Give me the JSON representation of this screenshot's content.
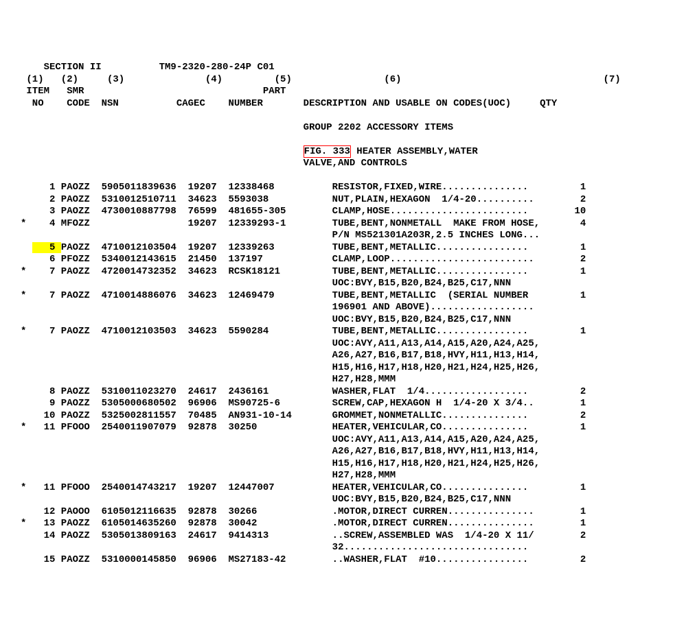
{
  "font_family": "Courier New",
  "font_size_pt": 14,
  "font_weight": "bold",
  "background_color": "#ffffff",
  "text_color": "#000000",
  "highlight_color": "#ffff00",
  "box_border_color": "#ff0000",
  "cols": {
    "star": 2,
    "item": 4,
    "smr": 6,
    "nsn": 14,
    "cagec": 6,
    "part": 15,
    "desc": 41,
    "qty": 3
  },
  "header": {
    "section": "SECTION II",
    "tm": "TM9-2320-280-24P C01",
    "col_nums": [
      "(1)",
      "(2)",
      "(3)",
      "(4)",
      "(5)",
      "(6)",
      "(7)"
    ],
    "h1": {
      "item": "ITEM",
      "smr": "SMR",
      "part": "PART"
    },
    "h2": {
      "no": "NO",
      "code": "CODE",
      "nsn": "NSN",
      "cagec": "CAGEC",
      "number": "NUMBER",
      "desc": "DESCRIPTION AND USABLE ON CODES(UOC)",
      "qty": "QTY"
    }
  },
  "group_line": "GROUP 2202 ACCESSORY ITEMS",
  "fig_box": "FIG. 333",
  "fig_rest": " HEATER ASSEMBLY,WATER",
  "fig_line2": "VALVE,AND CONTROLS",
  "rows": [
    {
      "star": "",
      "item": "1",
      "smr": "PAOZZ",
      "nsn": "5905011839636",
      "cagec": "19207",
      "part": "12338468",
      "desc": "RESISTOR,FIXED,WIRE...............",
      "qty": "1"
    },
    {
      "star": "",
      "item": "2",
      "smr": "PAOZZ",
      "nsn": "5310012510711",
      "cagec": "34623",
      "part": "5593038",
      "desc": "NUT,PLAIN,HEXAGON  1/4-20..........",
      "qty": "2"
    },
    {
      "star": "",
      "item": "3",
      "smr": "PAOZZ",
      "nsn": "4730010887798",
      "cagec": "76599",
      "part": "481655-305",
      "desc": "CLAMP,HOSE........................",
      "qty": "10"
    },
    {
      "star": "*",
      "item": "4",
      "smr": "MFOZZ",
      "nsn": "",
      "cagec": "19207",
      "part": "12339293-1",
      "desc": "TUBE,BENT,NONMETALL  MAKE FROM HOSE,",
      "qty": "4"
    },
    {
      "star": "",
      "item": "",
      "smr": "",
      "nsn": "",
      "cagec": "",
      "part": "",
      "desc": "P/N MS521301A203R,2.5 INCHES LONG...",
      "qty": ""
    },
    {
      "star": "",
      "item": "5",
      "smr": "PAOZZ",
      "nsn": "4710012103504",
      "cagec": "19207",
      "part": "12339263",
      "desc": "TUBE,BENT,METALLIC................",
      "qty": "1",
      "hl_item": true
    },
    {
      "star": "",
      "item": "6",
      "smr": "PFOZZ",
      "nsn": "5340012143615",
      "cagec": "21450",
      "part": "137197",
      "desc": "CLAMP,LOOP.........................",
      "qty": "2"
    },
    {
      "star": "*",
      "item": "7",
      "smr": "PAOZZ",
      "nsn": "4720014732352",
      "cagec": "34623",
      "part": "RCSK18121",
      "desc": "TUBE,BENT,METALLIC................",
      "qty": "1"
    },
    {
      "star": "",
      "item": "",
      "smr": "",
      "nsn": "",
      "cagec": "",
      "part": "",
      "desc": "UOC:BVY,B15,B20,B24,B25,C17,NNN",
      "qty": ""
    },
    {
      "star": "*",
      "item": "7",
      "smr": "PAOZZ",
      "nsn": "4710014886076",
      "cagec": "34623",
      "part": "12469479",
      "desc": "TUBE,BENT,METALLIC  (SERIAL NUMBER",
      "qty": "1"
    },
    {
      "star": "",
      "item": "",
      "smr": "",
      "nsn": "",
      "cagec": "",
      "part": "",
      "desc": "196901 AND ABOVE)..................",
      "qty": ""
    },
    {
      "star": "",
      "item": "",
      "smr": "",
      "nsn": "",
      "cagec": "",
      "part": "",
      "desc": "UOC:BVY,B15,B20,B24,B25,C17,NNN",
      "qty": ""
    },
    {
      "star": "*",
      "item": "7",
      "smr": "PAOZZ",
      "nsn": "4710012103503",
      "cagec": "34623",
      "part": "5590284",
      "desc": "TUBE,BENT,METALLIC................",
      "qty": "1"
    },
    {
      "star": "",
      "item": "",
      "smr": "",
      "nsn": "",
      "cagec": "",
      "part": "",
      "desc": "UOC:AVY,A11,A13,A14,A15,A20,A24,A25,",
      "qty": ""
    },
    {
      "star": "",
      "item": "",
      "smr": "",
      "nsn": "",
      "cagec": "",
      "part": "",
      "desc": "A26,A27,B16,B17,B18,HVY,H11,H13,H14,",
      "qty": ""
    },
    {
      "star": "",
      "item": "",
      "smr": "",
      "nsn": "",
      "cagec": "",
      "part": "",
      "desc": "H15,H16,H17,H18,H20,H21,H24,H25,H26,",
      "qty": ""
    },
    {
      "star": "",
      "item": "",
      "smr": "",
      "nsn": "",
      "cagec": "",
      "part": "",
      "desc": "H27,H28,MMM",
      "qty": ""
    },
    {
      "star": "",
      "item": "8",
      "smr": "PAOZZ",
      "nsn": "5310011023270",
      "cagec": "24617",
      "part": "2436161",
      "desc": "WASHER,FLAT  1/4..................",
      "qty": "2"
    },
    {
      "star": "",
      "item": "9",
      "smr": "PAOZZ",
      "nsn": "5305000680502",
      "cagec": "96906",
      "part": "MS90725-6",
      "desc": "SCREW,CAP,HEXAGON H  1/4-20 X 3/4..",
      "qty": "1"
    },
    {
      "star": "",
      "item": "10",
      "smr": "PAOZZ",
      "nsn": "5325002811557",
      "cagec": "70485",
      "part": "AN931-10-14",
      "desc": "GROMMET,NONMETALLIC...............",
      "qty": "2"
    },
    {
      "star": "*",
      "item": "11",
      "smr": "PFOOO",
      "nsn": "2540011907079",
      "cagec": "92878",
      "part": "30250",
      "desc": "HEATER,VEHICULAR,CO...............",
      "qty": "1"
    },
    {
      "star": "",
      "item": "",
      "smr": "",
      "nsn": "",
      "cagec": "",
      "part": "",
      "desc": "UOC:AVY,A11,A13,A14,A15,A20,A24,A25,",
      "qty": ""
    },
    {
      "star": "",
      "item": "",
      "smr": "",
      "nsn": "",
      "cagec": "",
      "part": "",
      "desc": "A26,A27,B16,B17,B18,HVY,H11,H13,H14,",
      "qty": ""
    },
    {
      "star": "",
      "item": "",
      "smr": "",
      "nsn": "",
      "cagec": "",
      "part": "",
      "desc": "H15,H16,H17,H18,H20,H21,H24,H25,H26,",
      "qty": ""
    },
    {
      "star": "",
      "item": "",
      "smr": "",
      "nsn": "",
      "cagec": "",
      "part": "",
      "desc": "H27,H28,MMM",
      "qty": ""
    },
    {
      "star": "*",
      "item": "11",
      "smr": "PFOOO",
      "nsn": "2540014743217",
      "cagec": "19207",
      "part": "12447007",
      "desc": "HEATER,VEHICULAR,CO...............",
      "qty": "1"
    },
    {
      "star": "",
      "item": "",
      "smr": "",
      "nsn": "",
      "cagec": "",
      "part": "",
      "desc": "UOC:BVY,B15,B20,B24,B25,C17,NNN",
      "qty": ""
    },
    {
      "star": "",
      "item": "12",
      "smr": "PAOOO",
      "nsn": "6105012116635",
      "cagec": "92878",
      "part": "30266",
      "desc": ".MOTOR,DIRECT CURREN...............",
      "qty": "1"
    },
    {
      "star": "*",
      "item": "13",
      "smr": "PAOZZ",
      "nsn": "6105014635260",
      "cagec": "92878",
      "part": "30042",
      "desc": ".MOTOR,DIRECT CURREN...............",
      "qty": "1"
    },
    {
      "star": "",
      "item": "14",
      "smr": "PAOZZ",
      "nsn": "5305013809163",
      "cagec": "24617",
      "part": "9414313",
      "desc": "..SCREW,ASSEMBLED WAS  1/4-20 X 11/",
      "qty": "2"
    },
    {
      "star": "",
      "item": "",
      "smr": "",
      "nsn": "",
      "cagec": "",
      "part": "",
      "desc": "32................................",
      "qty": ""
    },
    {
      "star": "",
      "item": "15",
      "smr": "PAOZZ",
      "nsn": "5310000145850",
      "cagec": "96906",
      "part": "MS27183-42",
      "desc": "..WASHER,FLAT  #10................",
      "qty": "2"
    }
  ]
}
